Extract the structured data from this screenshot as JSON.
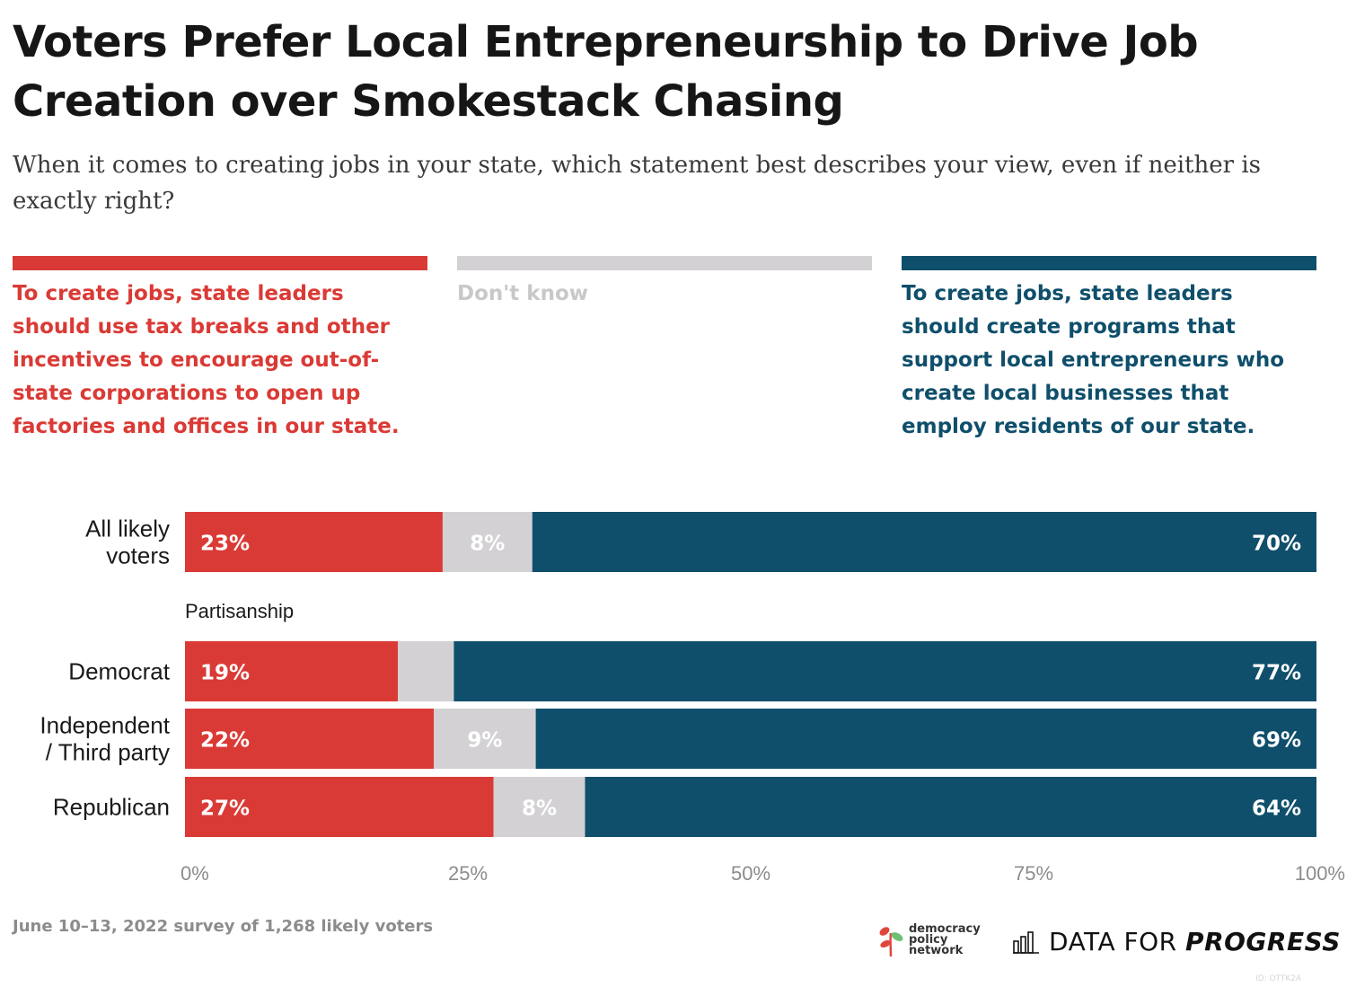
{
  "title": "Voters Prefer Local Entrepreneurship to Drive Job Creation over Smokestack Chasing",
  "subtitle": "When it comes to creating jobs in your state, which statement best describes your view, even if neither is exactly right?",
  "colors": {
    "red": "#da3a35",
    "grey": "#d3d1d4",
    "blue": "#0f4f6b",
    "dontknow_text": "#c9c7ca"
  },
  "legend": [
    {
      "label": "To create jobs, state leaders should use tax breaks and other incentives to encourage out-of-state corporations to open up factories and offices in our state.",
      "color": "#da3a35"
    },
    {
      "label": "Don't know",
      "color": "#c9c7ca"
    },
    {
      "label": "To create jobs, state leaders should create programs that support local entrepreneurs who create local businesses that employ residents of our state.",
      "color": "#0f4f6b"
    }
  ],
  "chart_data": {
    "type": "bar",
    "orientation": "horizontal",
    "stacked": true,
    "categories": [
      "All likely voters",
      "Democrat",
      "Independent / Third party",
      "Republican"
    ],
    "group_label": "Partisanship",
    "series": [
      {
        "name": "To create jobs, state leaders should use tax breaks and other incentives to encourage out-of-state corporations to open up factories and offices in our state.",
        "values": [
          23,
          19,
          22,
          27
        ],
        "labels": [
          "23%",
          "19%",
          "22%",
          "27%"
        ],
        "color": "#da3a35"
      },
      {
        "name": "Don't know",
        "values": [
          8,
          5,
          9,
          8
        ],
        "labels": [
          "8%",
          "",
          "9%",
          "8%"
        ],
        "color": "#d3d1d4"
      },
      {
        "name": "To create jobs, state leaders should create programs that support local entrepreneurs who create local businesses that employ residents of our state.",
        "values": [
          70,
          77,
          69,
          64
        ],
        "labels": [
          "70%",
          "77%",
          "69%",
          "64%"
        ],
        "color": "#0f4f6b"
      }
    ],
    "xlim": [
      0,
      100
    ],
    "xticks": [
      "0%",
      "25%",
      "50%",
      "75%",
      "100%"
    ],
    "legend_position": "top"
  },
  "footnote": "June 10–13, 2022 survey of 1,268 likely voters",
  "logos": {
    "dpn": [
      "democracy",
      "policy",
      "network"
    ],
    "dfp_light": "DATA FOR",
    "dfp_bold": "PROGRESS"
  },
  "watermark": "ID: OTTK2A"
}
